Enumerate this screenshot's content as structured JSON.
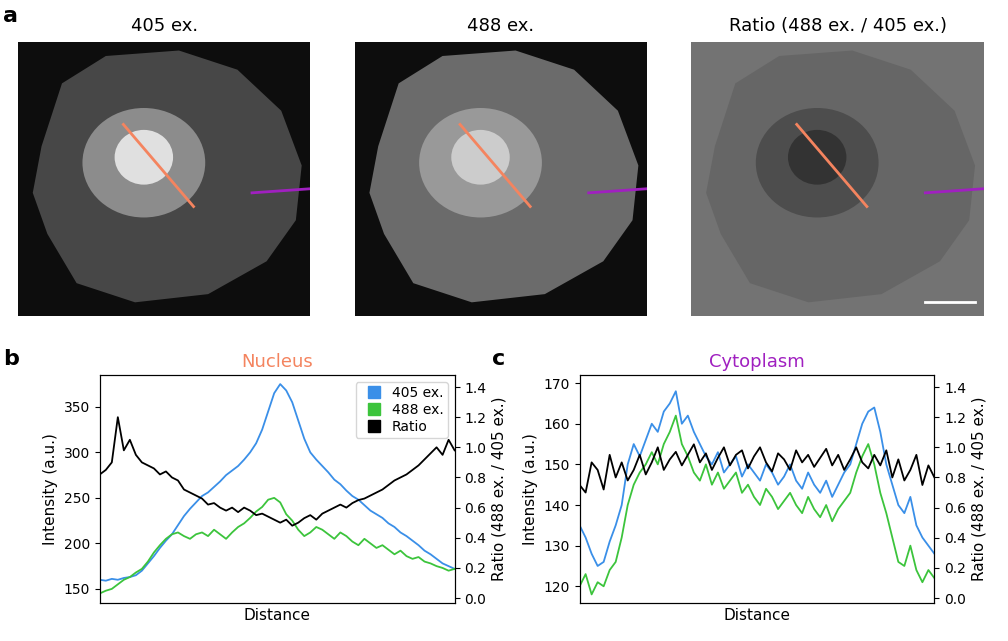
{
  "chart_data": [
    {
      "type": "image",
      "panel": "a",
      "title": "405 ex."
    },
    {
      "type": "image",
      "title": "488 ex."
    },
    {
      "type": "image",
      "title": "Ratio (488 ex. / 405 ex.)"
    },
    {
      "type": "line",
      "panel": "b",
      "title": "Nucleus",
      "color": "#f4845f",
      "x_label": "Distance",
      "y_label": "Intensity (a.u.)",
      "y2_label": "Ratio (488 ex. / 405 ex.)",
      "tick_labels": "y",
      "legend": "upper right",
      "x": [
        0,
        1,
        2,
        3,
        4,
        5,
        6,
        7,
        8,
        9,
        10,
        11,
        12,
        13,
        14,
        15,
        16,
        17,
        18,
        19,
        20,
        21,
        22,
        23,
        24,
        25,
        26,
        27,
        28,
        29,
        30,
        31,
        32,
        33,
        34,
        35,
        36,
        37,
        38,
        39,
        40,
        41,
        42,
        43,
        44,
        45,
        46,
        47,
        48,
        49,
        50,
        51,
        52,
        53,
        54,
        55,
        56,
        57,
        58,
        59
      ],
      "xlim": [
        0,
        59
      ],
      "xticks": [],
      "ylim": [
        135,
        385
      ],
      "yticks": [
        150,
        200,
        250,
        300,
        350
      ],
      "y2lim": [
        -0.03,
        1.48
      ],
      "y2ticks": [
        {
          "value": 0.0,
          "label": "0.0"
        },
        0.2,
        0.4,
        0.6,
        0.8,
        {
          "value": 1.0,
          "label": "1.0"
        },
        1.2,
        1.4
      ],
      "series": [
        {
          "name": "405 ex.",
          "color": "#3a8fe8",
          "marker": "square",
          "values": [
            160,
            159,
            161,
            160,
            162,
            163,
            165,
            170,
            178,
            186,
            195,
            203,
            210,
            220,
            230,
            238,
            245,
            252,
            256,
            262,
            268,
            275,
            280,
            285,
            292,
            300,
            310,
            325,
            345,
            365,
            375,
            368,
            355,
            335,
            315,
            300,
            292,
            285,
            278,
            270,
            265,
            258,
            252,
            248,
            242,
            236,
            232,
            228,
            222,
            218,
            212,
            208,
            203,
            198,
            192,
            188,
            183,
            178,
            175,
            172
          ]
        },
        {
          "name": "488 ex.",
          "color": "#3cc43c",
          "marker": "square",
          "values": [
            145,
            148,
            150,
            155,
            160,
            163,
            168,
            172,
            180,
            190,
            198,
            205,
            210,
            212,
            208,
            205,
            210,
            212,
            208,
            215,
            210,
            205,
            212,
            218,
            222,
            228,
            235,
            240,
            248,
            250,
            245,
            232,
            225,
            215,
            208,
            212,
            218,
            215,
            210,
            205,
            212,
            208,
            202,
            198,
            205,
            200,
            195,
            198,
            193,
            188,
            192,
            186,
            183,
            185,
            180,
            178,
            175,
            173,
            170,
            172
          ]
        },
        {
          "name": "Ratio",
          "color": "#000000",
          "marker": "square",
          "axis": "y2",
          "values": [
            0.82,
            0.85,
            0.9,
            1.2,
            0.98,
            1.05,
            0.95,
            0.9,
            0.88,
            0.86,
            0.82,
            0.84,
            0.8,
            0.78,
            0.72,
            0.7,
            0.68,
            0.66,
            0.62,
            0.63,
            0.6,
            0.58,
            0.6,
            0.57,
            0.6,
            0.58,
            0.55,
            0.56,
            0.54,
            0.52,
            0.5,
            0.52,
            0.48,
            0.5,
            0.53,
            0.55,
            0.52,
            0.56,
            0.58,
            0.6,
            0.62,
            0.6,
            0.63,
            0.65,
            0.66,
            0.68,
            0.7,
            0.72,
            0.75,
            0.78,
            0.8,
            0.82,
            0.85,
            0.88,
            0.92,
            0.96,
            1.0,
            0.95,
            1.05,
            0.98
          ]
        }
      ]
    },
    {
      "type": "line",
      "panel": "c",
      "title": "Cytoplasm",
      "color": "#a020c0",
      "x_label": "Distance",
      "y_label": "Intensity (a.u.)",
      "y2_label": "Ratio (488 ex. / 405 ex.)",
      "tick_labels": "y",
      "x": [
        0,
        1,
        2,
        3,
        4,
        5,
        6,
        7,
        8,
        9,
        10,
        11,
        12,
        13,
        14,
        15,
        16,
        17,
        18,
        19,
        20,
        21,
        22,
        23,
        24,
        25,
        26,
        27,
        28,
        29,
        30,
        31,
        32,
        33,
        34,
        35,
        36,
        37,
        38,
        39,
        40,
        41,
        42,
        43,
        44,
        45,
        46,
        47,
        48,
        49,
        50,
        51,
        52,
        53,
        54,
        55,
        56,
        57,
        58,
        59
      ],
      "xlim": [
        0,
        59
      ],
      "xticks": [],
      "ylim": [
        116,
        172
      ],
      "yticks": [
        120,
        130,
        140,
        150,
        160,
        170
      ],
      "y2lim": [
        -0.03,
        1.48
      ],
      "y2ticks": [
        {
          "value": 0.0,
          "label": "0.0"
        },
        0.2,
        0.4,
        0.6,
        0.8,
        {
          "value": 1.0,
          "label": "1.0"
        },
        1.2,
        1.4
      ],
      "series": [
        {
          "name": "405 ex.",
          "color": "#3a8fe8",
          "values": [
            135,
            132,
            128,
            125,
            126,
            131,
            135,
            140,
            150,
            155,
            152,
            156,
            160,
            158,
            163,
            165,
            168,
            160,
            162,
            158,
            155,
            152,
            150,
            153,
            148,
            150,
            152,
            147,
            150,
            148,
            146,
            150,
            148,
            145,
            147,
            150,
            146,
            144,
            148,
            145,
            143,
            146,
            142,
            145,
            148,
            150,
            155,
            160,
            163,
            164,
            158,
            150,
            145,
            140,
            138,
            142,
            135,
            132,
            130,
            128
          ]
        },
        {
          "name": "488 ex.",
          "color": "#3cc43c",
          "values": [
            120,
            123,
            118,
            121,
            120,
            124,
            126,
            132,
            140,
            145,
            148,
            150,
            153,
            150,
            155,
            158,
            162,
            155,
            152,
            148,
            146,
            150,
            145,
            148,
            144,
            146,
            148,
            143,
            145,
            142,
            140,
            144,
            142,
            139,
            141,
            143,
            140,
            138,
            142,
            139,
            137,
            140,
            136,
            139,
            141,
            143,
            148,
            152,
            155,
            150,
            143,
            138,
            132,
            126,
            125,
            130,
            124,
            121,
            124,
            122
          ]
        },
        {
          "name": "Ratio",
          "color": "#000000",
          "axis": "y2",
          "values": [
            0.75,
            0.7,
            0.9,
            0.85,
            0.72,
            0.95,
            0.8,
            0.9,
            0.78,
            0.85,
            0.95,
            0.82,
            0.9,
            1.0,
            0.85,
            0.92,
            0.97,
            0.88,
            0.95,
            1.02,
            0.9,
            0.96,
            0.85,
            0.93,
            1.0,
            0.88,
            0.95,
            0.98,
            0.86,
            0.94,
            1.0,
            0.9,
            0.84,
            0.96,
            0.92,
            0.85,
            0.98,
            0.9,
            0.95,
            0.87,
            0.93,
            0.99,
            0.88,
            0.95,
            0.85,
            0.92,
            1.0,
            0.9,
            0.86,
            0.95,
            0.88,
            0.98,
            0.8,
            0.92,
            0.78,
            0.85,
            0.95,
            0.75,
            0.88,
            0.8
          ]
        }
      ]
    }
  ]
}
